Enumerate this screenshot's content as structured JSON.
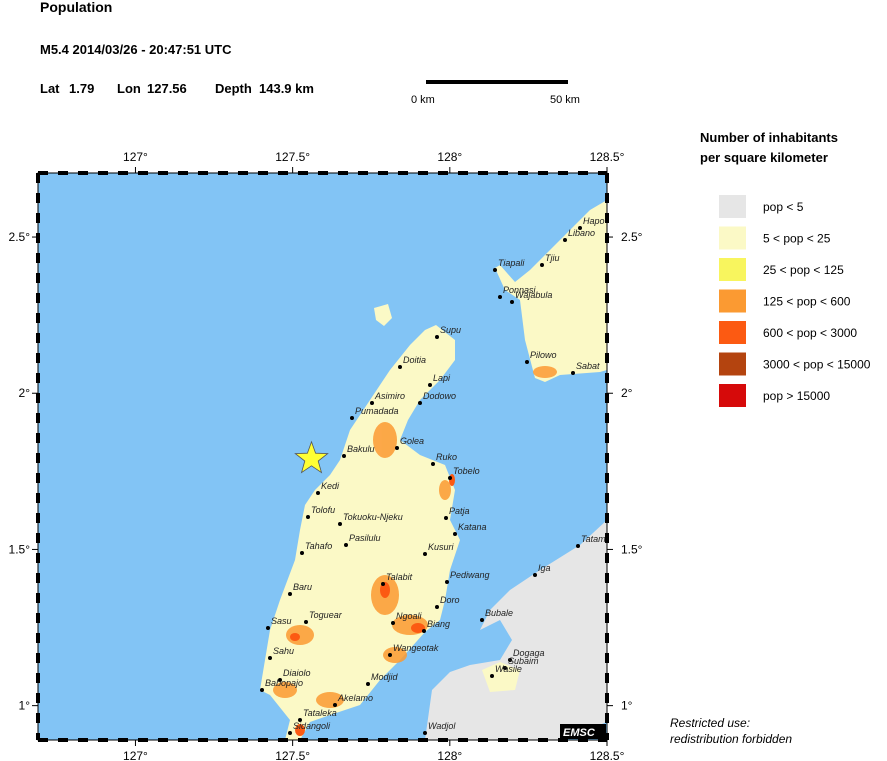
{
  "header": {
    "title": "Population",
    "event": "M5.4  2014/03/26 - 20:47:51 UTC",
    "lat_label": "Lat",
    "lat": 1.79,
    "lon_label": "Lon",
    "lon": 127.56,
    "depth_label": "Depth",
    "depth": "143.9 km"
  },
  "scale_bar": {
    "start": "0 km",
    "end": "50 km"
  },
  "map": {
    "lonlim": [
      126.69,
      128.5
    ],
    "latlim": [
      0.89,
      2.705
    ],
    "lonticks": [
      {
        "value": 127,
        "label": "127°"
      },
      {
        "value": 127.5,
        "label": "127.5°"
      },
      {
        "value": 128,
        "label": "128°"
      },
      {
        "value": 128.5,
        "label": "128.5°"
      }
    ],
    "latticks": [
      {
        "value": 1,
        "label": "1°"
      },
      {
        "value": 1.5,
        "label": "1.5°"
      },
      {
        "value": 2,
        "label": "2°"
      },
      {
        "value": 2.5,
        "label": "2.5°"
      }
    ],
    "towns": [
      "Supu",
      "Doitia",
      "Lapi",
      "Asimiro",
      "Dodowo",
      "Pumadada",
      "Golea",
      "Bakulu",
      "Ruko",
      "Tobelo",
      "Kedi",
      "Tolofu",
      "Patja",
      "Tokuoku-Njeku",
      "Katana",
      "Pasilulu",
      "Tahafo",
      "Kusuri",
      "Talabit",
      "Pediwang",
      "Baru",
      "Doro",
      "Toguear",
      "Ngoali",
      "Sasu",
      "Biang",
      "Wangeotak",
      "Sahu",
      "Modjid",
      "Diaiolo",
      "Babopajo",
      "Akelamo",
      "Tataleka",
      "Sidangoli",
      "Wadjol",
      "Tiapali",
      "Ponnasi",
      "Wajabula",
      "Tjiu",
      "Libano",
      "Hapo",
      "Pilowo",
      "Sabat",
      "Tatam",
      "Iga",
      "Bubale",
      "Dogaga",
      "Subaim",
      "Wasile"
    ],
    "credit": "EMSC"
  },
  "legend": {
    "title": [
      "Number of inhabitants",
      "per square kilometer"
    ],
    "entries": [
      {
        "label": "pop < 5",
        "color": "#e6e6e6"
      },
      {
        "label": "5 < pop < 25",
        "color": "#fbf9c6"
      },
      {
        "label": "25 < pop < 125",
        "color": "#f8f55e"
      },
      {
        "label": "125 < pop < 600",
        "color": "#fb9a32"
      },
      {
        "label": "600 < pop < 3000",
        "color": "#fc5a12"
      },
      {
        "label": "3000 < pop < 15000",
        "color": "#b4440f"
      },
      {
        "label": "pop > 15000",
        "color": "#d60a0a"
      }
    ]
  },
  "footer": [
    "Restricted use:",
    "redistribution forbidden"
  ]
}
